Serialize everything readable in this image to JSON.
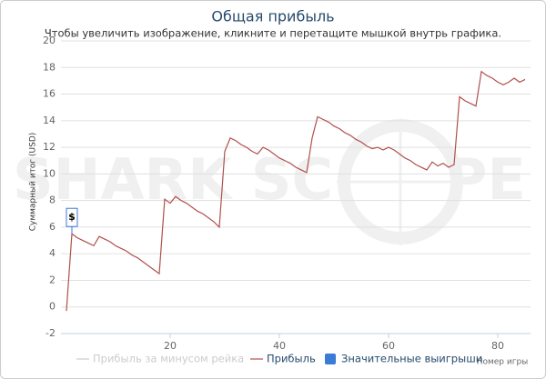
{
  "chart_data": {
    "type": "line",
    "title": "Общая прибыль",
    "subtitle": "Чтобы увеличить изображение, кликните и перетащите мышкой внутрь графика.",
    "y_axis_label": "Суммарный итог (USD)",
    "x_axis_label": "Номер игры",
    "watermark": [
      "SHARK SC",
      "PE"
    ],
    "x": [
      1,
      2,
      3,
      4,
      5,
      6,
      7,
      8,
      9,
      10,
      11,
      12,
      13,
      14,
      15,
      16,
      17,
      18,
      19,
      20,
      21,
      22,
      23,
      24,
      25,
      26,
      27,
      28,
      29,
      30,
      31,
      32,
      33,
      34,
      35,
      36,
      37,
      38,
      39,
      40,
      41,
      42,
      43,
      44,
      45,
      46,
      47,
      48,
      49,
      50,
      51,
      52,
      53,
      54,
      55,
      56,
      57,
      58,
      59,
      60,
      61,
      62,
      63,
      64,
      65,
      66,
      67,
      68,
      69,
      70,
      71,
      72,
      73,
      74,
      75,
      76,
      77,
      78,
      79,
      80,
      81,
      82,
      83,
      84,
      85
    ],
    "values": [
      -0.3,
      5.5,
      5.2,
      5.0,
      4.8,
      4.6,
      5.3,
      5.1,
      4.9,
      4.6,
      4.4,
      4.2,
      3.9,
      3.7,
      3.4,
      3.1,
      2.8,
      2.5,
      8.1,
      7.8,
      8.3,
      8.0,
      7.8,
      7.5,
      7.2,
      7.0,
      6.7,
      6.4,
      6.0,
      11.7,
      12.7,
      12.5,
      12.2,
      12.0,
      11.7,
      11.5,
      12.0,
      11.8,
      11.5,
      11.2,
      11.0,
      10.8,
      10.5,
      10.3,
      10.1,
      12.7,
      14.3,
      14.1,
      13.9,
      13.6,
      13.4,
      13.1,
      12.9,
      12.6,
      12.4,
      12.1,
      11.9,
      12.0,
      11.8,
      12.0,
      11.8,
      11.5,
      11.2,
      11.0,
      10.7,
      10.5,
      10.3,
      10.9,
      10.6,
      10.8,
      10.5,
      10.7,
      15.8,
      15.5,
      15.3,
      15.1,
      17.7,
      17.4,
      17.2,
      16.9,
      16.7,
      16.9,
      17.2,
      16.9,
      17.1
    ],
    "color": "#b0504c",
    "xlim": [
      0,
      86
    ],
    "xticks": [
      20,
      40,
      60,
      80
    ],
    "ylim": [
      -2,
      20
    ],
    "yticks": [
      -2,
      0,
      2,
      4,
      6,
      8,
      10,
      12,
      14,
      16,
      18,
      20
    ],
    "grid": true,
    "annotations": [
      {
        "text": "$",
        "x": 2,
        "y": 5.5
      }
    ],
    "legend": [
      {
        "name": "Прибыль за минусом рейка",
        "color": "#cccccc",
        "symbol": "line",
        "hidden": true
      },
      {
        "name": "Прибыль",
        "color": "#b0504c",
        "symbol": "line",
        "hidden": false
      },
      {
        "name": "Значительные выигрыши",
        "color": "#3a7bd5",
        "symbol": "square",
        "hidden": false
      }
    ]
  }
}
